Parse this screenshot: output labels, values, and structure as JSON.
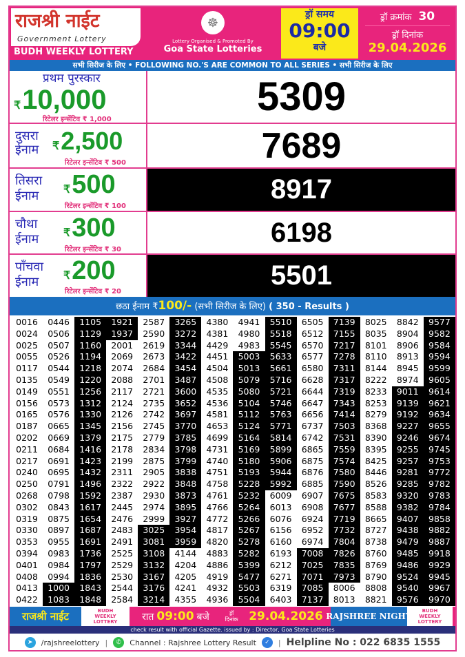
{
  "header": {
    "title_hindi": "राजश्री नाईट",
    "subtitle": "Government Lottery",
    "lottery_name": "BUDH WEEKLY LOTTERY",
    "organised_by": "Lottery Organised & Promoted By",
    "organiser": "Goa State Lotteries",
    "draw_time_label": "ड्रॉ समय",
    "draw_time": "09:00",
    "draw_time_suffix": "बजे",
    "draw_no_label": "ड्रॉ क्रमांक",
    "draw_no": "30",
    "draw_date_label": "ड्रॉ दिनांक",
    "draw_date": "29.04.2026"
  },
  "strip": {
    "text": "सभी सिरीज के लिए  •  FOLLOWING NO.'S ARE COMMON TO ALL SERIES  • सभी सिरीज के लिए"
  },
  "prizes": [
    {
      "name": "प्रथम पुरस्कार",
      "currency": "₹",
      "amount": "10,000",
      "incentive": "रिटेलर इन्सेंटिव ₹ 1,000",
      "number": "5309"
    },
    {
      "name1": "दुसरा",
      "name2": "ईनाम",
      "currency": "₹",
      "amount": "2,500",
      "incentive": "रिटेलर इन्सेंटिव ₹ 500",
      "number": "7689"
    },
    {
      "name1": "तिसरा",
      "name2": "ईनाम",
      "currency": "₹",
      "amount": "500",
      "incentive": "रिटेलर इन्सेंटिव ₹ 100",
      "number": "8917"
    },
    {
      "name1": "चौथा",
      "name2": "ईनाम",
      "currency": "₹",
      "amount": "300",
      "incentive": "रिटेलर इन्सेंटिव ₹ 30",
      "number": "6198"
    },
    {
      "name1": "पाँचवा",
      "name2": "ईनाम",
      "currency": "₹",
      "amount": "200",
      "incentive": "रिटेलर इन्सेंटिव ₹ 20",
      "number": "5501"
    }
  ],
  "sixth": {
    "label": "छठा ईनाम ₹",
    "amount": "100/-",
    "note": " (सभी सिरीज के लिए) ",
    "count": "( 350 - Results )"
  },
  "results_columns": [
    [
      "0016",
      "0024",
      "0025",
      "0055",
      "0117",
      "0135",
      "0149",
      "0156",
      "0165",
      "0187",
      "0202",
      "0211",
      "0217",
      "0240",
      "0250",
      "0268",
      "0302",
      "0319",
      "0330",
      "0353",
      "0394",
      "0401",
      "0408",
      "0413",
      "0422"
    ],
    [
      "0446",
      "0506",
      "0507",
      "0526",
      "0544",
      "0549",
      "0551",
      "0573",
      "0576",
      "0665",
      "0669",
      "0684",
      "0691",
      "0695",
      "0791",
      "0798",
      "0843",
      "0875",
      "0897",
      "0955",
      "0983",
      "0984",
      "0994",
      "1000",
      "1083"
    ],
    [
      "1105",
      "1129",
      "1160",
      "1194",
      "1218",
      "1220",
      "1256",
      "1312",
      "1330",
      "1345",
      "1379",
      "1416",
      "1423",
      "1432",
      "1496",
      "1592",
      "1617",
      "1654",
      "1687",
      "1691",
      "1736",
      "1797",
      "1836",
      "1843",
      "1848"
    ],
    [
      "1921",
      "1937",
      "2001",
      "2069",
      "2074",
      "2088",
      "2117",
      "2124",
      "2126",
      "2156",
      "2175",
      "2178",
      "2199",
      "2311",
      "2322",
      "2387",
      "2445",
      "2476",
      "2483",
      "2491",
      "2525",
      "2529",
      "2530",
      "2544",
      "2584"
    ],
    [
      "2587",
      "2590",
      "2619",
      "2673",
      "2684",
      "2701",
      "2721",
      "2735",
      "2742",
      "2745",
      "2779",
      "2834",
      "2875",
      "2905",
      "2922",
      "2930",
      "2974",
      "2999",
      "3025",
      "3081",
      "3108",
      "3132",
      "3167",
      "3176",
      "3214"
    ],
    [
      "3265",
      "3272",
      "3344",
      "3422",
      "3454",
      "3487",
      "3600",
      "3652",
      "3697",
      "3770",
      "3785",
      "3798",
      "3799",
      "3838",
      "3848",
      "3873",
      "3895",
      "3927",
      "3954",
      "3959",
      "4144",
      "4204",
      "4205",
      "4241",
      "4355"
    ],
    [
      "4380",
      "4381",
      "4429",
      "4451",
      "4504",
      "4508",
      "4535",
      "4536",
      "4581",
      "4653",
      "4699",
      "4731",
      "4740",
      "4751",
      "4758",
      "4761",
      "4766",
      "4772",
      "4817",
      "4820",
      "4883",
      "4886",
      "4919",
      "4932",
      "4936"
    ],
    [
      "4941",
      "4980",
      "4983",
      "5003",
      "5013",
      "5079",
      "5080",
      "5104",
      "5112",
      "5124",
      "5164",
      "5169",
      "5180",
      "5193",
      "5228",
      "5232",
      "5264",
      "5266",
      "5267",
      "5278",
      "5282",
      "5399",
      "5477",
      "5503",
      "5504"
    ],
    [
      "5510",
      "5518",
      "5545",
      "5633",
      "5661",
      "5716",
      "5721",
      "5746",
      "5763",
      "5771",
      "5814",
      "5899",
      "5906",
      "5944",
      "5992",
      "6009",
      "6013",
      "6076",
      "6156",
      "6160",
      "6193",
      "6212",
      "6271",
      "6319",
      "6403"
    ],
    [
      "6505",
      "6512",
      "6570",
      "6577",
      "6580",
      "6628",
      "6644",
      "6647",
      "6656",
      "6737",
      "6742",
      "6865",
      "6875",
      "6876",
      "6885",
      "6907",
      "6908",
      "6924",
      "6952",
      "6974",
      "7008",
      "7025",
      "7071",
      "7085",
      "7137"
    ],
    [
      "7139",
      "7155",
      "7217",
      "7278",
      "7311",
      "7317",
      "7319",
      "7343",
      "7414",
      "7503",
      "7531",
      "7559",
      "7574",
      "7580",
      "7590",
      "7675",
      "7677",
      "7719",
      "7732",
      "7804",
      "7826",
      "7835",
      "7973",
      "8006",
      "8013"
    ],
    [
      "8025",
      "8035",
      "8101",
      "8110",
      "8144",
      "8222",
      "8233",
      "8253",
      "8279",
      "8368",
      "8390",
      "8395",
      "8425",
      "8446",
      "8526",
      "8583",
      "8588",
      "8665",
      "8727",
      "8738",
      "8760",
      "8769",
      "8790",
      "8808",
      "8821"
    ],
    [
      "8842",
      "8904",
      "8906",
      "8913",
      "8945",
      "8974",
      "9011",
      "9139",
      "9192",
      "9227",
      "9246",
      "9255",
      "9257",
      "9281",
      "9285",
      "9320",
      "9382",
      "9407",
      "9438",
      "9479",
      "9485",
      "9486",
      "9524",
      "9540",
      "9576"
    ],
    [
      "9577",
      "9582",
      "9584",
      "9594",
      "9599",
      "9605",
      "9614",
      "9621",
      "9634",
      "9655",
      "9674",
      "9745",
      "9753",
      "9772",
      "9782",
      "9783",
      "9784",
      "9858",
      "9882",
      "9887",
      "9918",
      "9929",
      "9945",
      "9967",
      "9970"
    ]
  ],
  "footer": {
    "title_hindi": "राजश्री नाईट",
    "budh": [
      "BUDH",
      "WEEKLY",
      "LOTTERY"
    ],
    "night": "रात",
    "time": "09:00",
    "baje": "बजे",
    "draw_label1": "ड्रॉ",
    "draw_label2": "दिनांक",
    "date": "29.04.2026",
    "title_english": "RAJSHREE NIGHT",
    "gazette": "check result with official Gazette. issued by : Director, Goa State Lotteries",
    "telegram": "/rajshreelottery",
    "channel": "Channel : Rajshree Lottery Result",
    "helpline": "Helpline No : 022 6835 1555"
  },
  "colors": {
    "pink": "#e8247c",
    "blue": "#1b6fbf",
    "yellow": "#fbe91a",
    "green": "#1a9a2a",
    "navy": "#2a2f7a"
  },
  "icons": {
    "emblem": "goa-emblem-icon",
    "telegram": "telegram-icon",
    "whatsapp": "whatsapp-icon",
    "verified": "verified-badge-icon"
  }
}
